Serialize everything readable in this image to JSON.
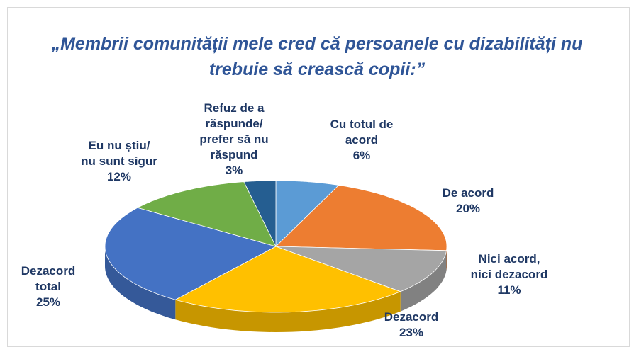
{
  "chart_data": {
    "type": "pie3d",
    "title": "„Membrii comunității mele cred că persoanele cu dizabilități nu trebuie să crească copii:”",
    "categories": [
      "Cu totul de\nacord",
      "De acord",
      "Nici acord,\nnici dezacord",
      "Dezacord",
      "Dezacord\ntotal",
      "Eu nu știu/\nnu sunt sigur",
      "Refuz de a\nrăspunde/\nprefer să nu\nrăspund"
    ],
    "values": [
      6,
      20,
      11,
      23,
      25,
      12,
      3
    ],
    "value_labels": [
      "6%",
      "20%",
      "11%",
      "23%",
      "25%",
      "12%",
      "3%"
    ],
    "colors": [
      "#5b9bd5",
      "#ed7d31",
      "#a5a5a5",
      "#ffc000",
      "#4472c4",
      "#70ad47",
      "#255e91"
    ]
  }
}
